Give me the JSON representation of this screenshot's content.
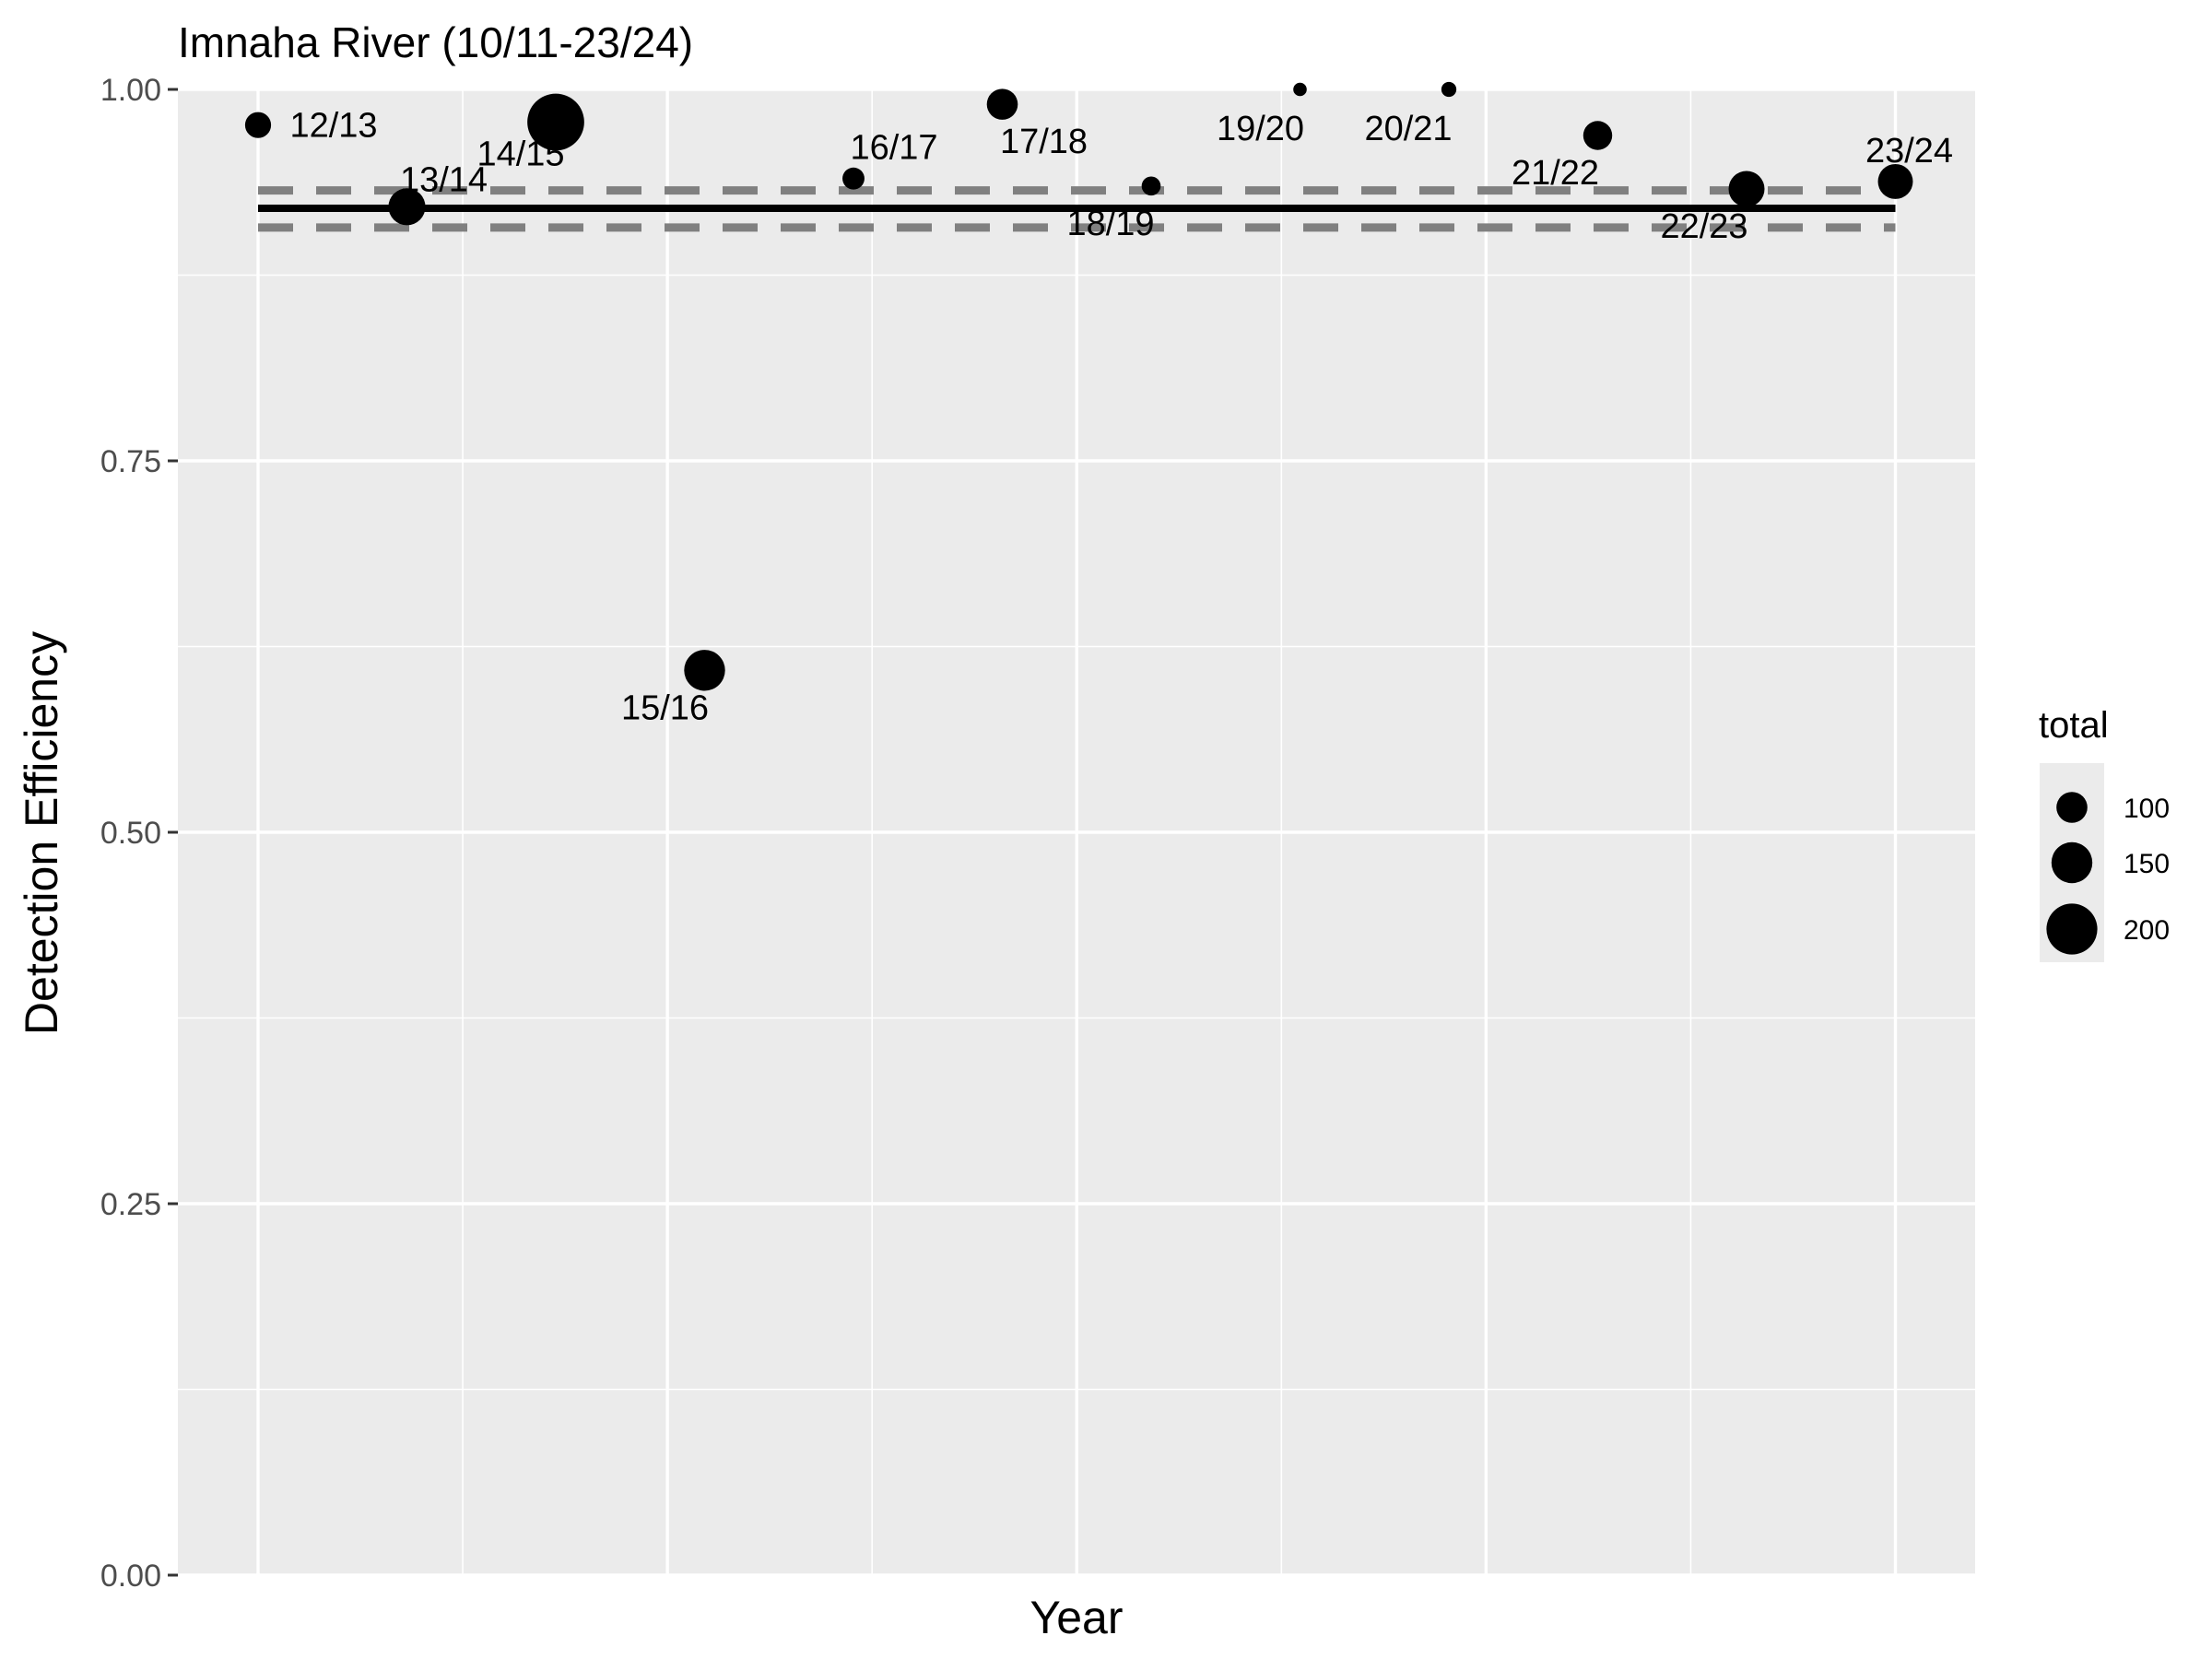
{
  "chart_data": {
    "type": "scatter",
    "title": "Imnaha River (10/11-23/24)",
    "xlabel": "Year",
    "ylabel": "Detection Efficiency",
    "ylim": [
      0,
      1
    ],
    "yticks": [
      "0.00",
      "0.25",
      "0.50",
      "0.75",
      "1.00"
    ],
    "grid": true,
    "points": [
      {
        "label": "12/13",
        "x": 1,
        "y": 0.976,
        "total": 75
      },
      {
        "label": "13/14",
        "x": 2,
        "y": 0.921,
        "total": 130
      },
      {
        "label": "14/15",
        "x": 3,
        "y": 0.978,
        "total": 230
      },
      {
        "label": "15/16",
        "x": 4,
        "y": 0.609,
        "total": 150
      },
      {
        "label": "16/17",
        "x": 5,
        "y": 0.94,
        "total": 55
      },
      {
        "label": "17/18",
        "x": 6,
        "y": 0.99,
        "total": 100
      },
      {
        "label": "18/19",
        "x": 7,
        "y": 0.935,
        "total": 40
      },
      {
        "label": "19/20",
        "x": 8,
        "y": 1.0,
        "total": 12
      },
      {
        "label": "20/21",
        "x": 9,
        "y": 1.0,
        "total": 20
      },
      {
        "label": "21/22",
        "x": 10,
        "y": 0.969,
        "total": 90
      },
      {
        "label": "22/23",
        "x": 11,
        "y": 0.933,
        "total": 125
      },
      {
        "label": "23/24",
        "x": 12,
        "y": 0.938,
        "total": 120
      }
    ],
    "mean_line": {
      "y": 0.92,
      "style": "solid",
      "color": "#000000"
    },
    "ci_lines": [
      {
        "y": 0.932,
        "style": "dashed",
        "color": "#808080"
      },
      {
        "y": 0.907,
        "style": "dashed",
        "color": "#808080"
      }
    ],
    "legend": {
      "title": "total",
      "placement": "right",
      "entries": [
        {
          "label": "100",
          "value": 100
        },
        {
          "label": "150",
          "value": 150
        },
        {
          "label": "200",
          "value": 200
        }
      ]
    },
    "colors": {
      "panel": "#ebebeb",
      "grid": "#ffffff",
      "point": "#000000"
    }
  }
}
